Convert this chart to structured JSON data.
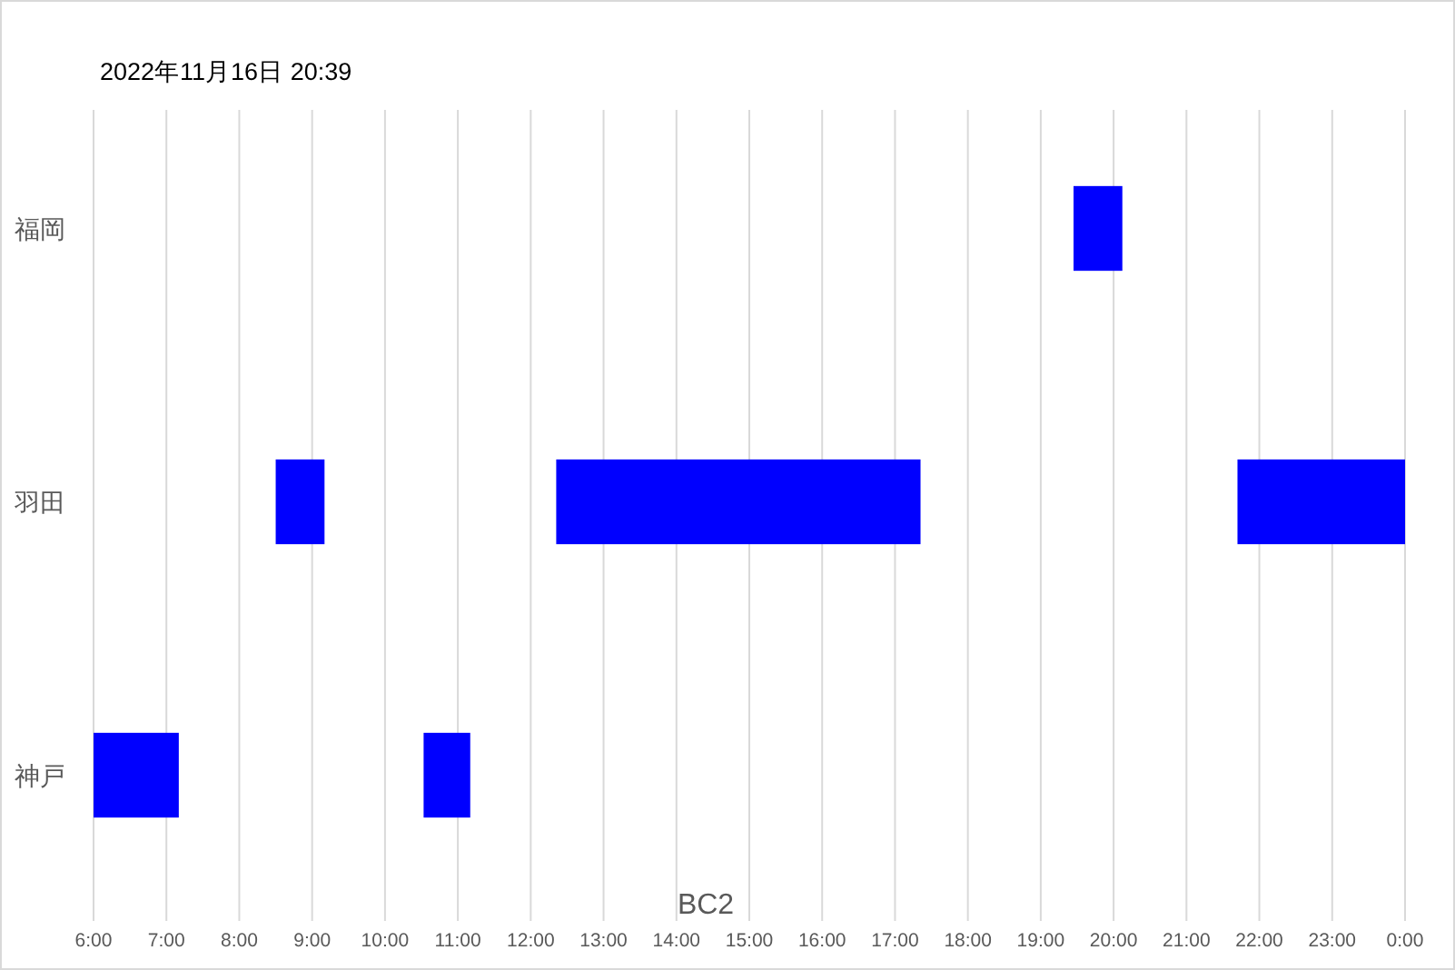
{
  "chart_data": {
    "type": "bar",
    "orientation": "horizontal",
    "title": "2022年11月16日 20:39",
    "xlabel": "BC2",
    "categories": [
      "福岡",
      "羽田",
      "神戸"
    ],
    "series": [
      {
        "color": "#0000ff",
        "base": [
          19.45,
          8.5,
          6.0
        ],
        "values": [
          0.67,
          0.67,
          1.17
        ]
      },
      {
        "color": "#0000ff",
        "base": [
          null,
          12.35,
          10.53
        ],
        "values": [
          null,
          5.0,
          0.64
        ]
      },
      {
        "color": "#0000ff",
        "base": [
          null,
          21.7,
          null
        ],
        "values": [
          null,
          2.3,
          null
        ]
      }
    ],
    "xlim": [
      6,
      24
    ],
    "xticks": [
      {
        "value": 6,
        "label": "6:00"
      },
      {
        "value": 7,
        "label": "7:00"
      },
      {
        "value": 8,
        "label": "8:00"
      },
      {
        "value": 9,
        "label": "9:00"
      },
      {
        "value": 10,
        "label": "10:00"
      },
      {
        "value": 11,
        "label": "11:00"
      },
      {
        "value": 12,
        "label": "12:00"
      },
      {
        "value": 13,
        "label": "13:00"
      },
      {
        "value": 14,
        "label": "14:00"
      },
      {
        "value": 15,
        "label": "15:00"
      },
      {
        "value": 16,
        "label": "16:00"
      },
      {
        "value": 17,
        "label": "17:00"
      },
      {
        "value": 18,
        "label": "18:00"
      },
      {
        "value": 19,
        "label": "19:00"
      },
      {
        "value": 20,
        "label": "20:00"
      },
      {
        "value": 21,
        "label": "21:00"
      },
      {
        "value": 22,
        "label": "22:00"
      },
      {
        "value": 23,
        "label": "23:00"
      },
      {
        "value": 24,
        "label": "0:00"
      }
    ],
    "grid": "x"
  }
}
